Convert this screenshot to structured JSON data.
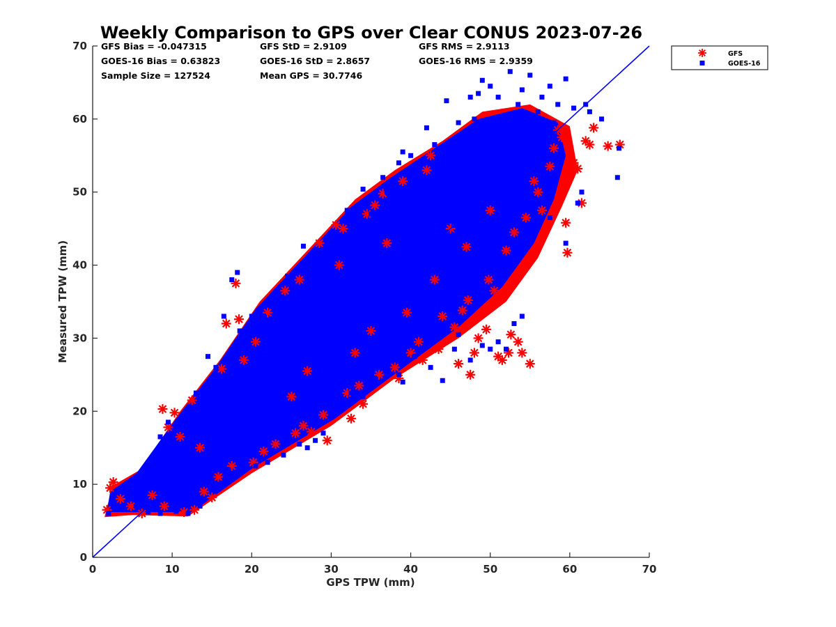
{
  "chart_data": {
    "type": "scatter",
    "title": "Weekly Comparison to GPS over Clear CONUS 2023-07-26",
    "xlabel": "GPS TPW (mm)",
    "ylabel": "Measured TPW (mm)",
    "xlim": [
      0,
      70
    ],
    "ylim": [
      0,
      70
    ],
    "x_ticks": [
      "0",
      "10",
      "20",
      "30",
      "40",
      "50",
      "60",
      "70"
    ],
    "y_ticks": [
      "0",
      "10",
      "20",
      "30",
      "40",
      "50",
      "60",
      "70"
    ],
    "grid": false,
    "legend_position": "outside-top-right",
    "stats": [
      [
        "GFS Bias = -0.047315",
        "GFS StD = 2.9109",
        "GFS RMS = 2.9113"
      ],
      [
        "GOES-16 Bias = 0.63823",
        "GOES-16 StD = 2.8657",
        "GOES-16 RMS = 2.9359"
      ],
      [
        "Sample Size = 127524",
        "Mean GPS = 30.7746",
        ""
      ]
    ],
    "one_to_one_line": {
      "x": [
        0,
        70
      ],
      "y": [
        0,
        70
      ],
      "color": "#0000ff"
    },
    "series": [
      {
        "name": "GFS",
        "marker": "asterisk",
        "color": "#ff0000",
        "points": [
          [
            1.8,
            6.5
          ],
          [
            2.2,
            9.5
          ],
          [
            2.6,
            10.3
          ],
          [
            3.5,
            8.0
          ],
          [
            4.8,
            7.0
          ],
          [
            6.2,
            6.0
          ],
          [
            8.8,
            20.3
          ],
          [
            9.5,
            17.8
          ],
          [
            10.3,
            19.8
          ],
          [
            11.0,
            16.5
          ],
          [
            12.5,
            21.5
          ],
          [
            12.8,
            6.5
          ],
          [
            14.0,
            9.0
          ],
          [
            15.0,
            8.2
          ],
          [
            15.8,
            11.0
          ],
          [
            16.2,
            25.8
          ],
          [
            16.8,
            32.0
          ],
          [
            17.5,
            12.5
          ],
          [
            18.0,
            37.5
          ],
          [
            18.4,
            32.6
          ],
          [
            20.2,
            13.0
          ],
          [
            20.5,
            29.5
          ],
          [
            21.5,
            14.5
          ],
          [
            23.0,
            15.5
          ],
          [
            24.2,
            36.5
          ],
          [
            25.5,
            17.0
          ],
          [
            26.0,
            38.0
          ],
          [
            26.5,
            18.0
          ],
          [
            27.5,
            17.2
          ],
          [
            28.5,
            43.0
          ],
          [
            29.0,
            19.5
          ],
          [
            29.5,
            16.0
          ],
          [
            30.6,
            45.5
          ],
          [
            31.5,
            45.0
          ],
          [
            32.0,
            22.5
          ],
          [
            32.5,
            19.0
          ],
          [
            33.5,
            23.5
          ],
          [
            34.0,
            21.0
          ],
          [
            34.5,
            47.0
          ],
          [
            35.5,
            48.2
          ],
          [
            36.0,
            25.0
          ],
          [
            36.5,
            49.8
          ],
          [
            38.0,
            26.0
          ],
          [
            38.5,
            24.5
          ],
          [
            39.0,
            51.5
          ],
          [
            40.0,
            28.0
          ],
          [
            41.0,
            29.5
          ],
          [
            41.5,
            27.0
          ],
          [
            42.0,
            53.0
          ],
          [
            42.5,
            55.0
          ],
          [
            43.5,
            28.5
          ],
          [
            44.0,
            33.0
          ],
          [
            45.5,
            31.5
          ],
          [
            46.0,
            26.5
          ],
          [
            46.5,
            33.8
          ],
          [
            47.2,
            35.2
          ],
          [
            47.5,
            25.0
          ],
          [
            48.0,
            28.0
          ],
          [
            48.5,
            30.0
          ],
          [
            49.5,
            31.2
          ],
          [
            49.8,
            38.0
          ],
          [
            50.5,
            36.5
          ],
          [
            51.0,
            27.5
          ],
          [
            51.5,
            27.0
          ],
          [
            52.0,
            42.0
          ],
          [
            52.3,
            28.0
          ],
          [
            52.6,
            30.5
          ],
          [
            53.0,
            44.5
          ],
          [
            53.5,
            29.5
          ],
          [
            54.0,
            28.0
          ],
          [
            55.0,
            26.5
          ],
          [
            54.5,
            46.5
          ],
          [
            56.0,
            50.0
          ],
          [
            56.5,
            47.5
          ],
          [
            57.5,
            53.5
          ],
          [
            58.0,
            56.0
          ],
          [
            59.0,
            57.5
          ],
          [
            59.5,
            45.8
          ],
          [
            59.7,
            41.7
          ],
          [
            60.0,
            53.0
          ],
          [
            60.5,
            54.0
          ],
          [
            61.0,
            53.2
          ],
          [
            61.5,
            48.5
          ],
          [
            62.0,
            57.0
          ],
          [
            62.5,
            56.5
          ],
          [
            63.0,
            58.8
          ],
          [
            64.8,
            56.3
          ],
          [
            66.3,
            56.5
          ],
          [
            7.5,
            8.5
          ],
          [
            9.0,
            7.0
          ],
          [
            11.5,
            6.2
          ],
          [
            13.5,
            15.0
          ],
          [
            19.0,
            27.0
          ],
          [
            22.0,
            33.5
          ],
          [
            25.0,
            22.0
          ],
          [
            27.0,
            25.5
          ],
          [
            31.0,
            40.0
          ],
          [
            33.0,
            28.0
          ],
          [
            35.0,
            31.0
          ],
          [
            37.0,
            43.0
          ],
          [
            39.5,
            33.5
          ],
          [
            43.0,
            38.0
          ],
          [
            45.0,
            45.0
          ],
          [
            47.0,
            42.5
          ],
          [
            50.0,
            47.5
          ],
          [
            55.5,
            51.5
          ],
          [
            58.5,
            58.5
          ]
        ]
      },
      {
        "name": "GOES-16",
        "marker": "square",
        "color": "#0000ff",
        "points": [
          [
            2.0,
            6.0
          ],
          [
            2.5,
            7.5
          ],
          [
            3.0,
            9.0
          ],
          [
            9.5,
            18.5
          ],
          [
            17.5,
            38.0
          ],
          [
            18.2,
            39.0
          ],
          [
            16.5,
            33.0
          ],
          [
            14.5,
            27.5
          ],
          [
            19.0,
            28.5
          ],
          [
            21.5,
            33.0
          ],
          [
            25.0,
            37.5
          ],
          [
            26.5,
            42.6
          ],
          [
            28.0,
            41.5
          ],
          [
            30.5,
            44.5
          ],
          [
            32.0,
            47.5
          ],
          [
            34.0,
            50.4
          ],
          [
            35.0,
            47.0
          ],
          [
            36.5,
            52.0
          ],
          [
            38.5,
            54.0
          ],
          [
            39.0,
            55.5
          ],
          [
            40.0,
            55.0
          ],
          [
            42.0,
            58.8
          ],
          [
            43.0,
            56.5
          ],
          [
            44.5,
            62.5
          ],
          [
            46.0,
            59.5
          ],
          [
            47.5,
            63.0
          ],
          [
            48.5,
            63.5
          ],
          [
            49.0,
            65.3
          ],
          [
            50.0,
            64.5
          ],
          [
            51.0,
            63.0
          ],
          [
            52.5,
            66.5
          ],
          [
            53.5,
            62.0
          ],
          [
            54.0,
            64.0
          ],
          [
            55.0,
            66.0
          ],
          [
            56.5,
            63.0
          ],
          [
            57.5,
            64.5
          ],
          [
            58.5,
            62.0
          ],
          [
            59.5,
            65.5
          ],
          [
            60.5,
            61.5
          ],
          [
            62.0,
            62.0
          ],
          [
            62.5,
            61.0
          ],
          [
            64.0,
            60.0
          ],
          [
            66.0,
            52.0
          ],
          [
            66.2,
            56.0
          ],
          [
            61.5,
            50.0
          ],
          [
            61.0,
            48.5
          ],
          [
            59.5,
            43.0
          ],
          [
            57.5,
            46.5
          ],
          [
            55.5,
            46.0
          ],
          [
            54.0,
            33.0
          ],
          [
            53.0,
            32.0
          ],
          [
            52.0,
            28.5
          ],
          [
            51.0,
            29.5
          ],
          [
            50.0,
            28.5
          ],
          [
            49.0,
            29.0
          ],
          [
            47.5,
            27.0
          ],
          [
            46.0,
            30.5
          ],
          [
            45.5,
            28.5
          ],
          [
            44.0,
            24.2
          ],
          [
            42.5,
            26.0
          ],
          [
            40.5,
            27.5
          ],
          [
            39.0,
            24.0
          ],
          [
            38.5,
            25.0
          ],
          [
            36.5,
            26.0
          ],
          [
            35.5,
            24.5
          ],
          [
            34.0,
            22.0
          ],
          [
            32.5,
            22.5
          ],
          [
            31.0,
            20.0
          ],
          [
            29.0,
            17.0
          ],
          [
            28.0,
            16.0
          ],
          [
            27.0,
            15.0
          ],
          [
            26.0,
            15.5
          ],
          [
            24.0,
            14.0
          ],
          [
            22.0,
            13.0
          ],
          [
            20.5,
            12.5
          ],
          [
            19.0,
            13.0
          ],
          [
            17.0,
            12.0
          ],
          [
            15.5,
            9.5
          ],
          [
            13.5,
            7.0
          ],
          [
            12.0,
            6.0
          ],
          [
            10.5,
            6.3
          ],
          [
            8.5,
            6.0
          ],
          [
            7.0,
            6.2
          ],
          [
            5.5,
            7.0
          ],
          [
            4.5,
            8.5
          ],
          [
            8.5,
            16.5
          ],
          [
            11.0,
            18.0
          ],
          [
            13.0,
            22.5
          ],
          [
            15.5,
            26.0
          ],
          [
            18.5,
            31.0
          ],
          [
            20.0,
            33.0
          ],
          [
            22.5,
            35.5
          ],
          [
            24.5,
            38.5
          ],
          [
            27.0,
            40.0
          ],
          [
            29.5,
            43.0
          ],
          [
            33.0,
            46.0
          ],
          [
            37.0,
            50.0
          ],
          [
            41.0,
            53.0
          ],
          [
            45.0,
            57.0
          ],
          [
            48.0,
            60.0
          ],
          [
            52.0,
            60.5
          ],
          [
            56.0,
            61.0
          ],
          [
            58.0,
            59.5
          ]
        ]
      }
    ]
  }
}
